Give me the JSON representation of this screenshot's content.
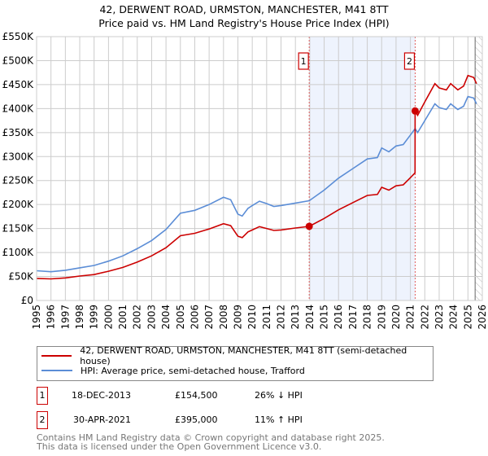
{
  "title_line1": "42, DERWENT ROAD, URMSTON, MANCHESTER, M41 8TT",
  "title_line2": "Price paid vs. HM Land Registry's House Price Index (HPI)",
  "chart_data": {
    "type": "line",
    "ylabel": "",
    "xlabel": "",
    "ylim": [
      0,
      550000
    ],
    "xlim": [
      1995,
      2026
    ],
    "y_ticks": [
      "£0",
      "£50K",
      "£100K",
      "£150K",
      "£200K",
      "£250K",
      "£300K",
      "£350K",
      "£400K",
      "£450K",
      "£500K",
      "£550K"
    ],
    "x_ticks": [
      "1995",
      "1996",
      "1997",
      "1998",
      "1999",
      "2000",
      "2001",
      "2002",
      "2003",
      "2004",
      "2005",
      "2006",
      "2007",
      "2008",
      "2009",
      "2010",
      "2011",
      "2012",
      "2013",
      "2014",
      "2015",
      "2016",
      "2017",
      "2018",
      "2019",
      "2020",
      "2021",
      "2022",
      "2023",
      "2024",
      "2025",
      "2026"
    ],
    "grid": true,
    "series": [
      {
        "name": "42, DERWENT ROAD, URMSTON, MANCHESTER, M41 8TT (semi-detached house)",
        "color": "#cc0000",
        "x": [
          1995,
          1996,
          1997,
          1998,
          1999,
          2000,
          2001,
          2002,
          2003,
          2004,
          2005,
          2006,
          2007,
          2008,
          2008.5,
          2009,
          2009.3,
          2009.7,
          2010,
          2010.5,
          2011,
          2011.5,
          2012,
          2013,
          2013.96,
          2015,
          2016,
          2017,
          2018,
          2018.7,
          2019,
          2019.5,
          2020,
          2020.5,
          2021,
          2021.32,
          2021.33,
          2021.5,
          2022,
          2022.7,
          2023,
          2023.5,
          2023.8,
          2024.3,
          2024.7,
          2025,
          2025.4,
          2025.6
        ],
        "y": [
          46,
          45,
          47,
          51,
          54,
          61,
          69,
          80,
          93,
          110,
          135,
          140,
          149,
          160,
          156,
          134,
          131,
          143,
          147,
          154,
          150,
          146,
          147,
          151,
          154.5,
          171,
          189,
          204,
          219,
          221,
          236,
          230,
          239,
          241,
          256,
          266,
          395,
          386,
          414,
          452,
          443,
          439,
          452,
          439,
          447,
          469,
          465,
          452
        ]
      },
      {
        "name": "HPI: Average price, semi-detached house, Trafford",
        "color": "#5b8dd6",
        "x": [
          1995,
          1996,
          1997,
          1998,
          1999,
          2000,
          2001,
          2002,
          2003,
          2004,
          2005,
          2006,
          2007,
          2008,
          2008.5,
          2009,
          2009.3,
          2009.7,
          2010,
          2010.5,
          2011,
          2011.5,
          2012,
          2013,
          2013.96,
          2015,
          2016,
          2017,
          2018,
          2018.7,
          2019,
          2019.5,
          2020,
          2020.5,
          2021,
          2021.32,
          2021.33,
          2021.5,
          2022,
          2022.7,
          2023,
          2023.5,
          2023.8,
          2024.3,
          2024.7,
          2025,
          2025.4,
          2025.6
        ],
        "y": [
          62,
          60,
          63,
          68,
          73,
          82,
          93,
          108,
          125,
          148,
          182,
          188,
          200,
          215,
          210,
          180,
          176,
          192,
          198,
          207,
          202,
          196,
          198,
          203,
          208,
          230,
          255,
          275,
          295,
          298,
          318,
          310,
          322,
          325,
          345,
          358,
          358,
          350,
          375,
          410,
          402,
          398,
          410,
          398,
          405,
          425,
          422,
          410
        ]
      }
    ],
    "y_unit": "thousands GBP",
    "sales": [
      {
        "label": "1",
        "x": 2013.96,
        "y": 154.5
      },
      {
        "label": "2",
        "x": 2021.33,
        "y": 395
      }
    ],
    "shaded_range": [
      2013.96,
      2021.33
    ],
    "forecast_hatch_from": 2025.5,
    "legend_position": "below"
  },
  "legend": {
    "property": "42, DERWENT ROAD, URMSTON, MANCHESTER, M41 8TT (semi-detached house)",
    "hpi": "HPI: Average price, semi-detached house, Trafford"
  },
  "transactions": [
    {
      "num": "1",
      "date": "18-DEC-2013",
      "price": "£154,500",
      "hpi": "26% ↓ HPI"
    },
    {
      "num": "2",
      "date": "30-APR-2021",
      "price": "£395,000",
      "hpi": "11% ↑ HPI"
    }
  ],
  "footer": {
    "line1": "Contains HM Land Registry data © Crown copyright and database right 2025.",
    "line2": "This data is licensed under the Open Government Licence v3.0."
  }
}
